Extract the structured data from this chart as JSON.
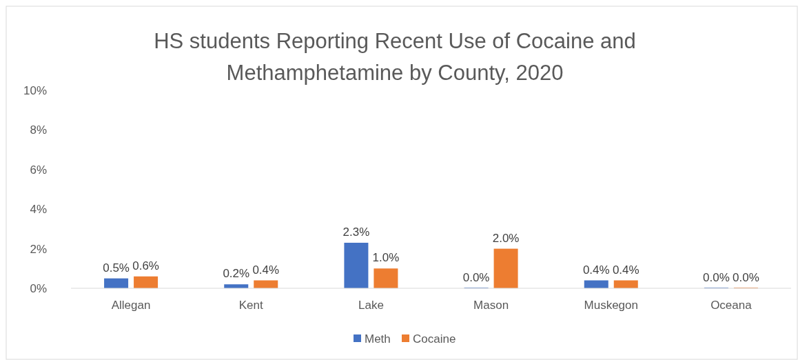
{
  "chart_data": {
    "type": "bar",
    "title": "HS students Reporting Recent Use of Cocaine and Methamphetamine by County, 2020",
    "categories": [
      "Allegan",
      "Kent",
      "Lake",
      "Mason",
      "Muskegon",
      "Oceana"
    ],
    "series": [
      {
        "name": "Meth",
        "color": "#4472c4",
        "values": [
          0.5,
          0.2,
          2.3,
          0,
          0.4,
          0
        ],
        "value_labels": [
          "0.5%",
          "0.2%",
          "2.3%",
          "0.0%",
          "0.4%",
          "0.0%"
        ]
      },
      {
        "name": "Cocaine",
        "color": "#ed7d31",
        "values": [
          0.6,
          0.4,
          1.0,
          2.0,
          0.4,
          0
        ],
        "value_labels": [
          "0.6%",
          "0.4%",
          "1.0%",
          "2.0%",
          "0.4%",
          "0.0%"
        ]
      }
    ],
    "ylim": [
      0,
      10
    ],
    "yticks": [
      {
        "value": 0,
        "label": "0%"
      },
      {
        "value": 2,
        "label": "2%"
      },
      {
        "value": 4,
        "label": "4%"
      },
      {
        "value": 6,
        "label": "6%"
      },
      {
        "value": 8,
        "label": "8%"
      },
      {
        "value": 10,
        "label": "10%"
      }
    ],
    "grid": false,
    "legend": "bottom"
  }
}
